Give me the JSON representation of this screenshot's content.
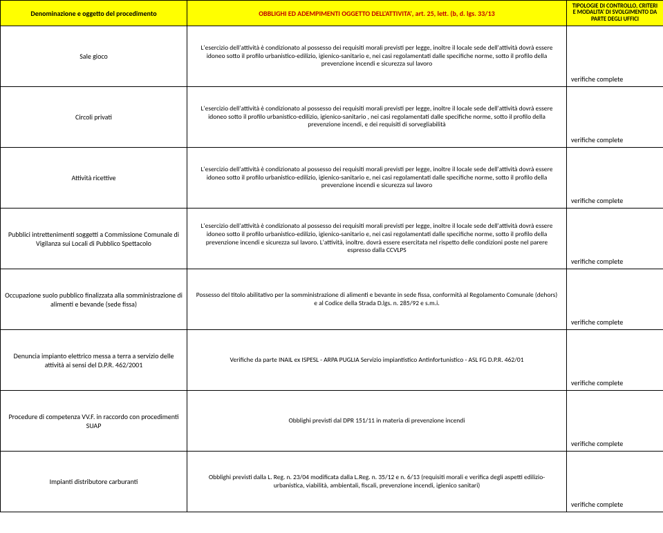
{
  "header": {
    "col1": "Denominazione e oggetto del procedimento",
    "col2": "OBBLIGHI ED ADEMPIMENTI OGGETTO DELL'ATTIVITA', art. 25, lett. (b, d. lgs. 33/13",
    "col3": "TIPOLOGIE DI CONTROLLO, CRITERI E MODALITA' DI SVOLGIMENTO DA PARTE DEGLI UFFICI"
  },
  "rows": [
    {
      "name": "Sale gioco",
      "desc": "L'esercizio dell'attività è condizionato al possesso dei requisiti morali previsti per legge, inoltre il locale sede dell'attività dovrà essere idoneo sotto il profilo urbanistico-edilizio, igienico-sanitario e, nei casi regolamentati dalle specifiche norme, sotto il profilo della prevenzione incendi e sicurezza sul lavoro",
      "check": "verifiche complete"
    },
    {
      "name": "Circoli privati",
      "desc": "L'esercizio dell'attività è condizionato al possesso dei requisiti morali previsti per legge, inoltre il locale sede dell'attività dovrà essere idoneo sotto il profilo urbanistico-edilizio, igienico-sanitario , nei casi regolamentati dalle specifiche norme, sotto il profilo della prevenzione incendi, e dei requisiti di sorvegliabilità",
      "check": "verifiche complete"
    },
    {
      "name": "Attività ricettive",
      "desc": "L'esercizio dell'attività è condizionato al possesso dei requisiti morali previsti per legge, inoltre il locale sede dell'attività dovrà essere idoneo sotto il profilo urbanistico-edilizio, igienico-sanitario e, nei casi regolamentati dalle specifiche norme, sotto il profilo della prevenzione incendi e sicurezza sul lavoro",
      "check": "verifiche complete"
    },
    {
      "name": "Pubblici intrettenimenti soggetti a Commissione Comunale di Vigilanza sui Locali di Pubblico Spettacolo",
      "desc": "L'esercizio dell'attività è condizionato al possesso dei requisiti morali previsti per legge, inoltre il locale sede dell'attività dovrà essere idoneo sotto il profilo urbanistico-edilizio, igienico-sanitario e, nei casi regolamentati dalle specifiche norme, sotto il profilo della prevenzione incendi e sicurezza sul lavoro. L'attività, inoltre. dovrà essere esercitata nel rispetto delle condizioni poste nel parere espresso dalla CCVLPS",
      "check": "verifiche complete"
    },
    {
      "name": "Occupazione suolo pubblico finalizzata alla somministrazione di alimenti e bevande (sede fissa)",
      "desc": "Possesso del titolo abilitativo per la somministrazione di alimenti e bevante in sede fissa, conformità al Regolamento Comunale (dehors) e al Codice della Strada D.lgs. n. 285/92 e s.m.i.",
      "check": "verifiche complete"
    },
    {
      "name": "Denuncia impianto elettrico messa a terra a servizio delle attività ai sensi del D.P.R. 462/2001",
      "desc": "Verifiche da parte INAIL ex ISPESL - ARPA PUGLIA Servizio impiantistico Antinfortunistico - ASL  FG  D.P.R. 462/01",
      "check": "verifiche complete"
    },
    {
      "name": "Procedure di competenza VV.F. in raccordo con procedimenti SUAP",
      "desc": "Obblighi previsti dal DPR 151/11 in materia di prevenzione incendi",
      "check": "verifiche complete"
    },
    {
      "name": "Impianti distributore carburanti",
      "desc": "Obblighi previsti dalla L. Reg. n. 23/04 modificata dalla L.Reg. n. 35/12 e n. 6/13 (requisiti morali e verifica degli aspetti edilizio-urbanistica, viabilità, ambientali, fiscali, prevenzione incendi, igienico sanitari)",
      "check": "verifiche complete"
    }
  ]
}
